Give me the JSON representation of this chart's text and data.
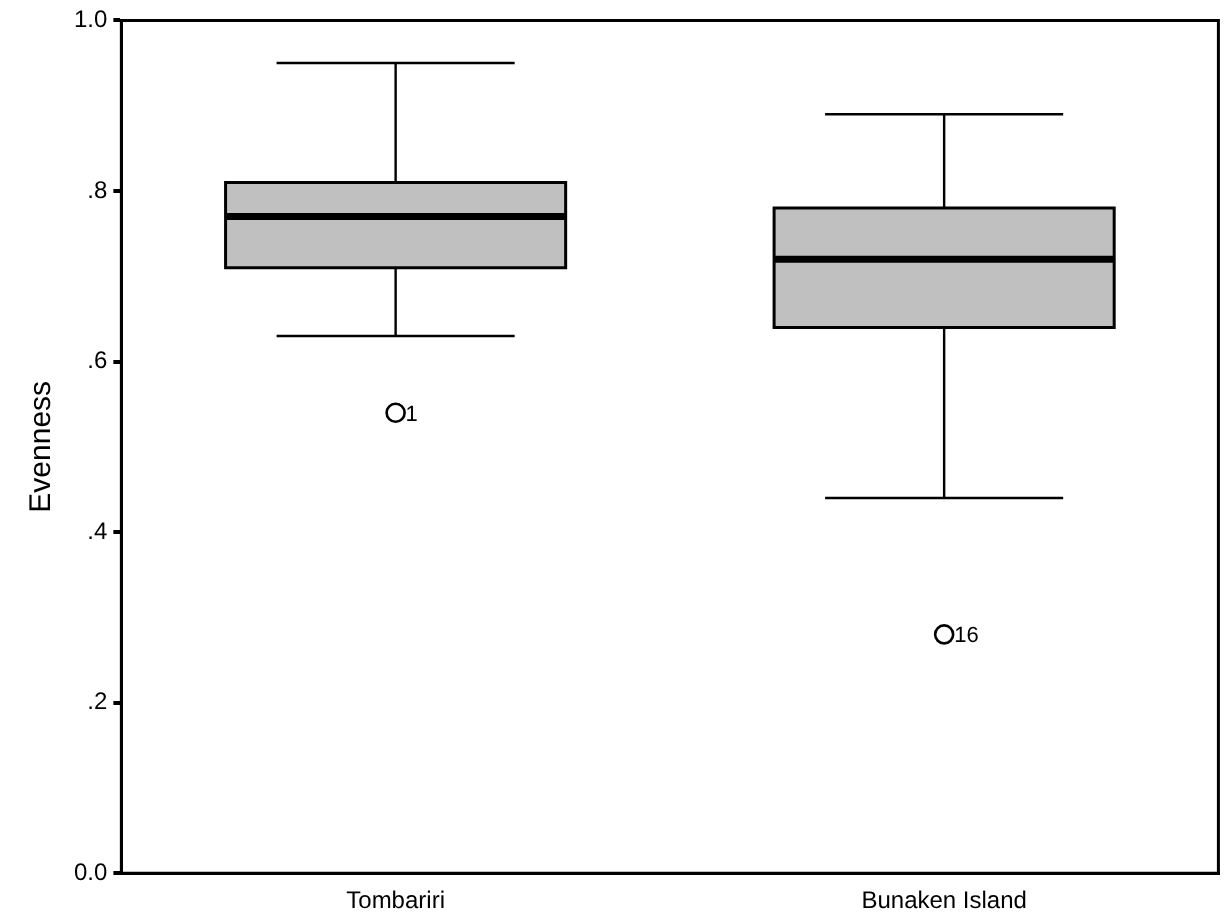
{
  "chart_data": {
    "type": "box",
    "ylabel": "Evenness",
    "categories": [
      "Tombariri",
      "Bunaken Island"
    ],
    "series": [
      {
        "color": "#c0c0c0",
        "boxes": [
          {
            "low": 0.63,
            "q1": 0.71,
            "median": 0.77,
            "q3": 0.81,
            "high": 0.95,
            "outliers": [
              0.54
            ]
          },
          {
            "low": 0.44,
            "q1": 0.64,
            "median": 0.72,
            "q3": 0.78,
            "high": 0.89,
            "outliers": [
              0.28
            ]
          }
        ]
      }
    ],
    "ylim": [
      0,
      1
    ],
    "yticks": [
      {
        "value": 0,
        "label": "0.0"
      },
      {
        "value": 0.2,
        "label": ".2"
      },
      {
        "value": 0.4,
        "label": ".4"
      },
      {
        "value": 0.6,
        "label": ".6"
      },
      {
        "value": 0.8,
        "label": ".8"
      },
      {
        "value": 1,
        "label": "1.0"
      }
    ],
    "annotations": [
      "1",
      "16"
    ],
    "grid": false,
    "legend": false,
    "marker": "circle"
  }
}
